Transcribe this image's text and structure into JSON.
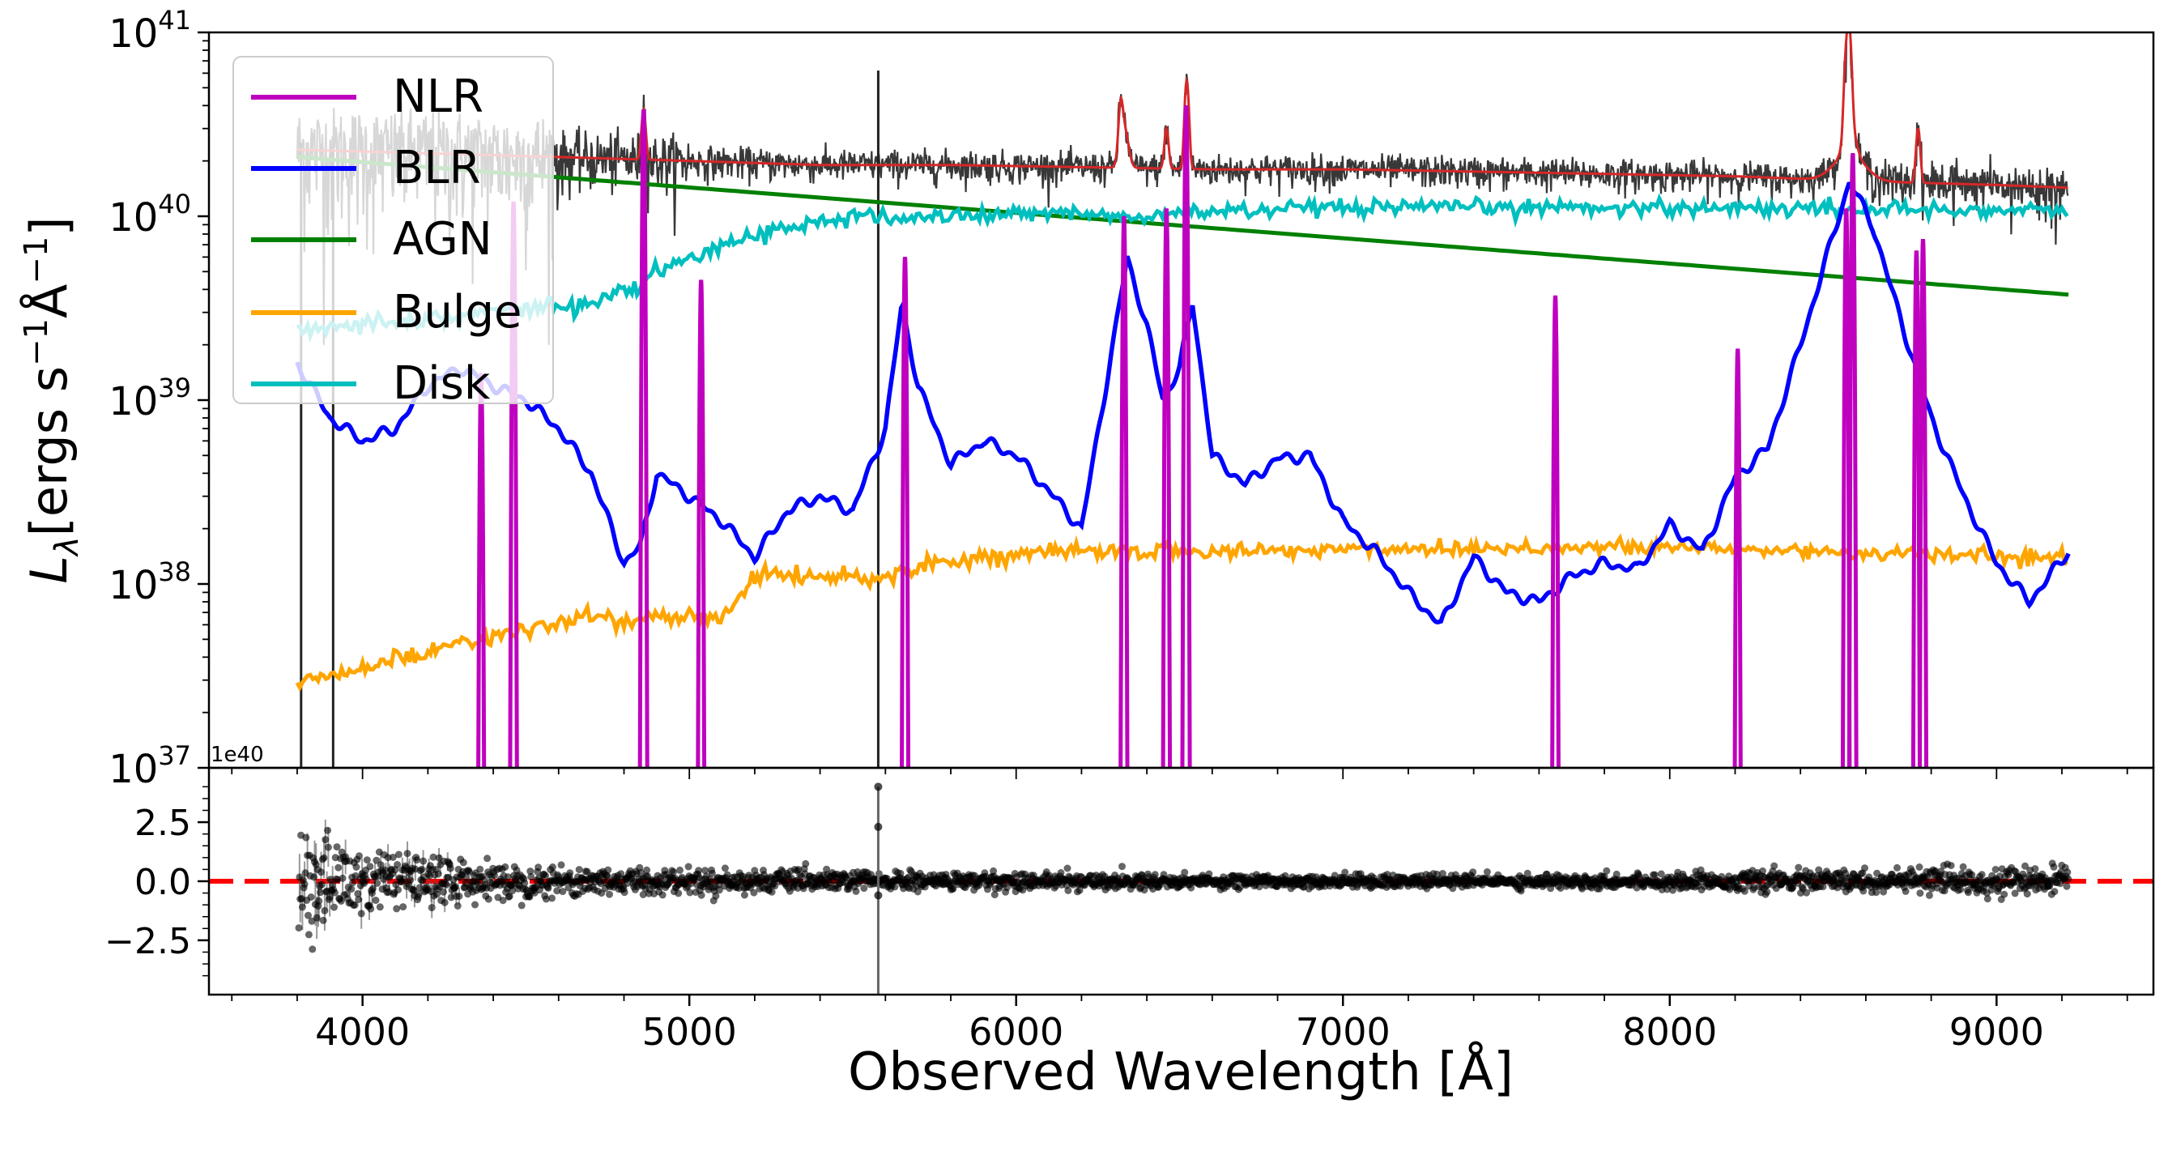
{
  "chart_data": [
    {
      "type": "line",
      "panel": "spectrum",
      "ylabel_parts": {
        "L": "L",
        "sub": "λ",
        "units_a": "[ergs s",
        "exp1": "−1",
        "units_b": "Å",
        "exp2": "−1",
        "close": "]"
      },
      "yscale": "log",
      "ylim": [
        1e+37,
        1e+41
      ],
      "xlim": [
        3530,
        9480
      ],
      "grid": false,
      "legend_placement": "top-left",
      "y_tick_labels": [
        {
          "base": "10",
          "exp": "37",
          "value": 1e+37
        },
        {
          "base": "10",
          "exp": "38",
          "value": 1e+38
        },
        {
          "base": "10",
          "exp": "39",
          "value": 1e+39
        },
        {
          "base": "10",
          "exp": "40",
          "value": 1e+40
        },
        {
          "base": "10",
          "exp": "41",
          "value": 1e+41
        }
      ],
      "legend": [
        {
          "name": "NLR",
          "color": "#bf00bf"
        },
        {
          "name": "BLR",
          "color": "#0000ff"
        },
        {
          "name": "AGN",
          "color": "#008000"
        },
        {
          "name": "Bulge",
          "color": "#ffa500"
        },
        {
          "name": "Disk",
          "color": "#00bfbf"
        }
      ],
      "series": [
        {
          "name": "AGN",
          "color": "#008000",
          "x": [
            3800,
            9220
          ],
          "y": [
            2.1e+40,
            3.75e+39
          ]
        },
        {
          "name": "Disk",
          "color": "#00bfbf",
          "x": [
            3800,
            3950,
            4100,
            4300,
            4450,
            4550,
            4650,
            4750,
            4850,
            4950,
            5050,
            5150,
            5250,
            5350,
            5450,
            5550,
            5650,
            5800,
            6000,
            6200,
            6340,
            6500,
            6700,
            7000,
            7500,
            8000,
            8500,
            9000,
            9220
          ],
          "y": [
            2.3e+39,
            2.6e+39,
            2.7e+39,
            2.9e+39,
            3.1e+39,
            3.3e+39,
            3.2e+39,
            3.6e+39,
            4.3e+39,
            5.5e+39,
            6.2e+39,
            7.5e+39,
            8.5e+39,
            9e+39,
            9.6e+39,
            1e+40,
            9.8e+39,
            1e+40,
            1.03e+40,
            1.06e+40,
            9.6e+39,
            1.05e+40,
            1.08e+40,
            1.1e+40,
            1.12e+40,
            1.12e+40,
            1.1e+40,
            1.08e+40,
            1.06e+40
          ]
        },
        {
          "name": "Bulge",
          "color": "#ffa500",
          "x": [
            3800,
            3900,
            4000,
            4100,
            4200,
            4300,
            4400,
            4500,
            4600,
            4700,
            4800,
            4900,
            5000,
            5100,
            5200,
            5300,
            5400,
            5500,
            5580,
            5650,
            5800,
            6000,
            6200,
            6400,
            6600,
            6800,
            7000,
            7500,
            8000,
            8500,
            9000,
            9220
          ],
          "y": [
            3e+37,
            3.1e+37,
            3.5e+37,
            3.9e+37,
            4.3e+37,
            4.9e+37,
            5.2e+37,
            5.6e+37,
            6e+37,
            6.8e+37,
            6.3e+37,
            6.6e+37,
            6.5e+37,
            6.7e+37,
            1.1e+38,
            1.12e+38,
            1.1e+38,
            1.12e+38,
            1.05e+38,
            1.2e+38,
            1.35e+38,
            1.45e+38,
            1.5e+38,
            1.52e+38,
            1.5e+38,
            1.52e+38,
            1.55e+38,
            1.58e+38,
            1.58e+38,
            1.5e+38,
            1.42e+38,
            1.35e+38
          ]
        },
        {
          "name": "BLR",
          "color": "#0000ff",
          "x": [
            3800,
            3900,
            4000,
            4100,
            4200,
            4300,
            4400,
            4500,
            4600,
            4700,
            4800,
            4850,
            4900,
            5000,
            5100,
            5200,
            5300,
            5400,
            5500,
            5600,
            5650,
            5700,
            5800,
            5900,
            6000,
            6100,
            6200,
            6300,
            6340,
            6400,
            6450,
            6500,
            6540,
            6600,
            6700,
            6800,
            6900,
            7000,
            7100,
            7200,
            7300,
            7400,
            7500,
            7600,
            7700,
            7800,
            7900,
            8000,
            8100,
            8200,
            8300,
            8400,
            8480,
            8550,
            8620,
            8700,
            8800,
            8900,
            9000,
            9100,
            9220
          ],
          "y": [
            1.6e+39,
            8e+38,
            6e+38,
            7e+38,
            1.2e+39,
            1.5e+39,
            1.2e+39,
            1e+39,
            7e+38,
            4e+38,
            1.3e+38,
            1.6e+38,
            4e+38,
            3e+38,
            2.2e+38,
            1.4e+38,
            2.5e+38,
            3e+38,
            2.5e+38,
            7e+38,
            3.3e+39,
            1.2e+39,
            4.5e+38,
            6e+38,
            5e+38,
            3.2e+38,
            2e+38,
            2.2e+39,
            6e+39,
            2.5e+39,
            1e+39,
            1.5e+39,
            3.4e+39,
            5e+38,
            3.5e+38,
            4.8e+38,
            5e+38,
            2.2e+38,
            1.5e+38,
            9e+37,
            6e+37,
            1.4e+38,
            9e+37,
            8e+37,
            1.1e+38,
            1.3e+38,
            1.2e+38,
            2.1e+38,
            1.5e+38,
            3.8e+38,
            5.5e+38,
            2e+39,
            6e+39,
            1.55e+40,
            9e+39,
            3e+39,
            8e+38,
            3e+38,
            1.3e+38,
            8e+37,
            1.5e+38
          ]
        },
        {
          "name": "NLR",
          "color": "#bf00bf",
          "lines": [
            {
              "x": 4363,
              "peak": 1.4e+39
            },
            {
              "x": 4462,
              "peak": 1.2e+40
            },
            {
              "x": 4860,
              "peak": 3.8e+40
            },
            {
              "x": 5036,
              "peak": 4.5e+39
            },
            {
              "x": 5660,
              "peak": 6e+39
            },
            {
              "x": 6330,
              "peak": 1e+40
            },
            {
              "x": 6460,
              "peak": 1.1e+40
            },
            {
              "x": 6520,
              "peak": 4e+40
            },
            {
              "x": 7650,
              "peak": 3.7e+39
            },
            {
              "x": 8208,
              "peak": 1.9e+39
            },
            {
              "x": 8540,
              "peak": 1.1e+40
            },
            {
              "x": 8560,
              "peak": 2.2e+40
            },
            {
              "x": 8755,
              "peak": 6.5e+39
            },
            {
              "x": 8775,
              "peak": 7.5e+39
            }
          ]
        },
        {
          "name": "data",
          "color": "#222222",
          "continuum_x": [
            3800,
            4200,
            4600,
            5000,
            5400,
            5800,
            6200,
            6600,
            7000,
            7400,
            7800,
            8200,
            8600,
            9000,
            9220
          ],
          "continuum_y": [
            2.3e+40,
            2.2e+40,
            2.1e+40,
            2e+40,
            1.9e+40,
            1.9e+40,
            1.85e+40,
            1.8e+40,
            1.8e+40,
            1.75e+40,
            1.7e+40,
            1.65e+40,
            1.55e+40,
            1.48e+40,
            1.43e+40
          ],
          "emission": [
            {
              "x": 4860,
              "peak": 3.8e+40
            },
            {
              "x": 6320,
              "peak": 3.5e+40
            },
            {
              "x": 6460,
              "peak": 3e+40
            },
            {
              "x": 6522,
              "peak": 5.5e+40
            },
            {
              "x": 8540,
              "peak": 6e+40
            },
            {
              "x": 8550,
              "peak": 8e+40
            },
            {
              "x": 8760,
              "peak": 3e+40
            }
          ],
          "spikes": [
            {
              "x": 3812,
              "low": 1e+37,
              "high": 2.5e+40
            },
            {
              "x": 3910,
              "low": 1e+37,
              "high": 2.3e+40
            },
            {
              "x": 5578,
              "low": 1e+37,
              "high": 6.2e+40
            }
          ]
        },
        {
          "name": "model",
          "color": "#d62728",
          "source": "data-smooth"
        }
      ]
    },
    {
      "type": "scatter",
      "panel": "residuals",
      "offset_text": "1e40",
      "xlim": [
        3530,
        9480
      ],
      "ylim": [
        -4.8,
        4.8
      ],
      "xlabel": "Observed Wavelength [Å]",
      "x_ticks": [
        4000,
        5000,
        6000,
        7000,
        8000,
        9000
      ],
      "x_tick_labels": [
        "4000",
        "5000",
        "6000",
        "7000",
        "8000",
        "9000"
      ],
      "y_ticks": [
        -2.5,
        0.0,
        2.5
      ],
      "y_tick_labels": [
        "−2.5",
        "0.0",
        "2.5"
      ],
      "zero_line": {
        "y": 0,
        "color": "#ff0000",
        "style": "dashed"
      },
      "points_color": "#000000",
      "scatter_amplitude": [
        {
          "x": 3800,
          "amp": 2.5
        },
        {
          "x": 4000,
          "amp": 1.6
        },
        {
          "x": 4300,
          "amp": 0.9
        },
        {
          "x": 5000,
          "amp": 0.55
        },
        {
          "x": 6000,
          "amp": 0.4
        },
        {
          "x": 7000,
          "amp": 0.3
        },
        {
          "x": 8000,
          "amp": 0.35
        },
        {
          "x": 8500,
          "amp": 0.55
        },
        {
          "x": 9220,
          "amp": 0.6
        }
      ],
      "outlier": {
        "x": 5578,
        "y_top": 4.0,
        "y_bottom": -4.8
      }
    }
  ]
}
